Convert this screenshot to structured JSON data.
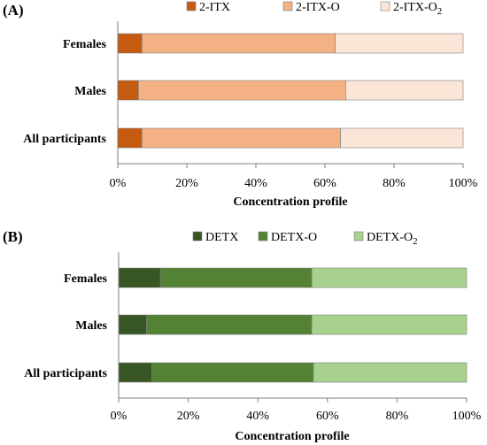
{
  "colors": {
    "A": [
      "#c55a11",
      "#f4b183",
      "#fbe5d6"
    ],
    "B": [
      "#375623",
      "#548235",
      "#a9d18e"
    ]
  },
  "chart_data": [
    {
      "panel": "(A)",
      "type": "bar",
      "orientation": "horizontal",
      "stacked": true,
      "categories": [
        "Females",
        "Males",
        "All participants"
      ],
      "series": [
        {
          "name": "2-ITX",
          "values": [
            7,
            6,
            7
          ]
        },
        {
          "name": "2-ITX-O",
          "values": [
            56,
            60,
            57.5
          ]
        },
        {
          "name": "2-ITX-O2",
          "values": [
            37,
            34,
            35.5
          ]
        }
      ],
      "legend_labels": [
        {
          "base": "2-ITX",
          "sub": ""
        },
        {
          "base": "2-ITX-O",
          "sub": ""
        },
        {
          "base": "2-ITX-O",
          "sub": "2"
        }
      ],
      "xlabel": "Concentration profile",
      "xlim": [
        0,
        100
      ],
      "xticks": [
        "0%",
        "20%",
        "40%",
        "60%",
        "80%",
        "100%"
      ],
      "grid": false,
      "legend": "top"
    },
    {
      "panel": "(B)",
      "type": "bar",
      "orientation": "horizontal",
      "stacked": true,
      "categories": [
        "Females",
        "Males",
        "All participants"
      ],
      "series": [
        {
          "name": "DETX",
          "values": [
            12,
            8,
            9.5
          ]
        },
        {
          "name": "DETX-O",
          "values": [
            43.5,
            47.5,
            46.5
          ]
        },
        {
          "name": "DETX-O2",
          "values": [
            44.5,
            44.5,
            44
          ]
        }
      ],
      "legend_labels": [
        {
          "base": "DETX",
          "sub": ""
        },
        {
          "base": "DETX-O",
          "sub": ""
        },
        {
          "base": "DETX-O",
          "sub": "2"
        }
      ],
      "xlabel": "Concentration profile",
      "xlim": [
        0,
        100
      ],
      "xticks": [
        "0%",
        "20%",
        "40%",
        "60%",
        "80%",
        "100%"
      ],
      "grid": false,
      "legend": "top"
    }
  ]
}
